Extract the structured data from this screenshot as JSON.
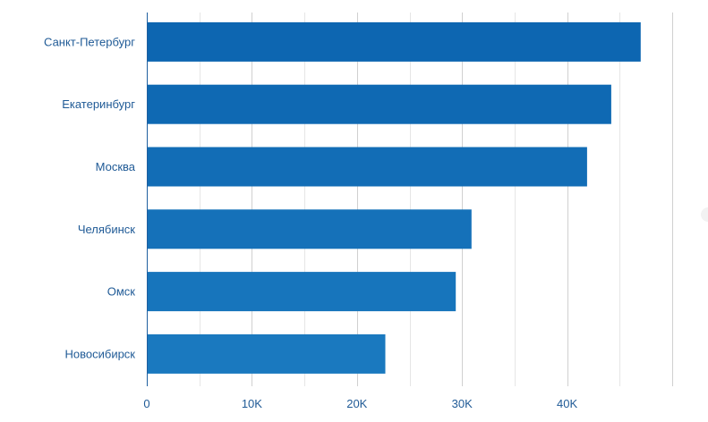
{
  "chart_data": {
    "type": "bar",
    "orientation": "horizontal",
    "categories": [
      "Санкт-Петербург",
      "Екатеринбург",
      "Москва",
      "Челябинск",
      "Омск",
      "Новосибирск"
    ],
    "values": [
      47000,
      44200,
      41900,
      30900,
      29400,
      22700
    ],
    "xlim": [
      0,
      50000
    ],
    "x_ticks": [
      0,
      10000,
      20000,
      30000,
      40000
    ],
    "x_tick_labels": [
      "0",
      "10K",
      "20K",
      "30K",
      "40K"
    ],
    "grid": true,
    "legend": "none",
    "title": "",
    "xlabel": "",
    "ylabel": "",
    "colors": [
      "#0d66b1",
      "#0f69b3",
      "#126db6",
      "#1571b9",
      "#1775bc",
      "#1a79bf"
    ],
    "label_color": "#1f5a96"
  }
}
